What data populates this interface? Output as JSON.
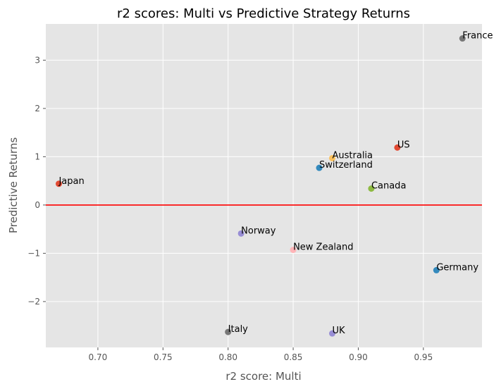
{
  "chart_data": {
    "type": "scatter",
    "title": "r2 scores: Multi vs Predictive Strategy Returns",
    "xlabel": "r2 score: Multi",
    "ylabel": "Predictive Returns",
    "xlim": [
      0.66,
      0.995
    ],
    "ylim": [
      -2.95,
      3.75
    ],
    "xticks": [
      0.7,
      0.75,
      0.8,
      0.85,
      0.9,
      0.95
    ],
    "xtick_labels": [
      "0.70",
      "0.75",
      "0.80",
      "0.85",
      "0.90",
      "0.95"
    ],
    "yticks": [
      -2,
      -1,
      0,
      1,
      2,
      3
    ],
    "ytick_labels": [
      "−2",
      "−1",
      "0",
      "1",
      "2",
      "3"
    ],
    "grid": true,
    "style": "ggplot",
    "background_color": "#e5e5e5",
    "reference_line": {
      "y": 0,
      "color": "#ff0000"
    },
    "points": [
      {
        "label": "France",
        "x": 0.98,
        "y": 3.45,
        "color": "#777777"
      },
      {
        "label": "US",
        "x": 0.93,
        "y": 1.19,
        "color": "#e24a33"
      },
      {
        "label": "Australia",
        "x": 0.88,
        "y": 0.97,
        "color": "#fbc15e"
      },
      {
        "label": "Switzerland",
        "x": 0.87,
        "y": 0.77,
        "color": "#348abd"
      },
      {
        "label": "Japan",
        "x": 0.67,
        "y": 0.44,
        "color": "#e24a33"
      },
      {
        "label": "Canada",
        "x": 0.91,
        "y": 0.34,
        "color": "#8eba42"
      },
      {
        "label": "Norway",
        "x": 0.81,
        "y": -0.59,
        "color": "#988ed5"
      },
      {
        "label": "New Zealand",
        "x": 0.85,
        "y": -0.93,
        "color": "#ffb5b8"
      },
      {
        "label": "Germany",
        "x": 0.96,
        "y": -1.35,
        "color": "#348abd"
      },
      {
        "label": "Italy",
        "x": 0.8,
        "y": -2.63,
        "color": "#777777"
      },
      {
        "label": "UK",
        "x": 0.88,
        "y": -2.66,
        "color": "#988ed5"
      }
    ]
  }
}
